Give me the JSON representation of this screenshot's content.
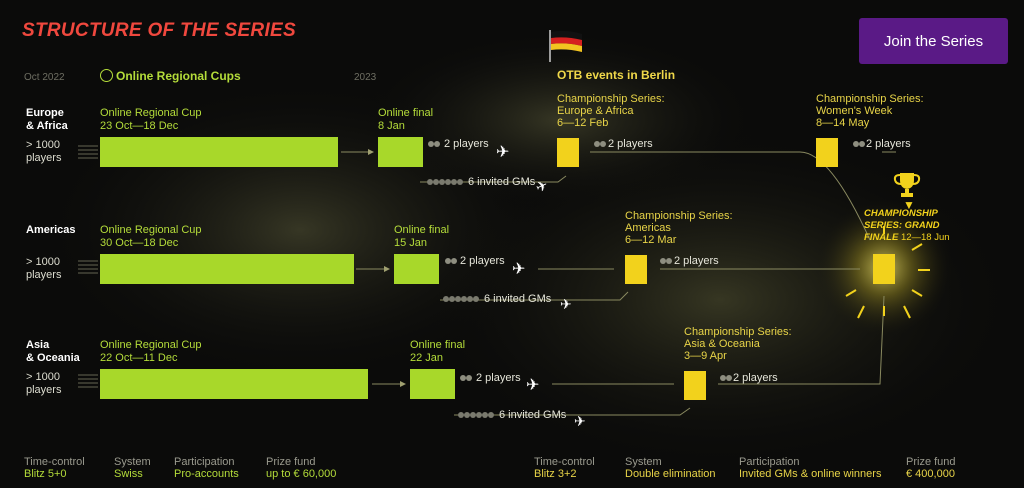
{
  "title": "STRUCTURE OF THE SERIES",
  "join_button": "Join the Series",
  "timeline": {
    "start": "Oct 2022",
    "mid": "2023",
    "online_section": "Online Regional Cups",
    "otb_section": "OTB events in Berlin"
  },
  "rows": [
    {
      "region_line1": "Europe",
      "region_line2": "& Africa",
      "players_line1": "> 1000",
      "players_line2": "players",
      "cup_label": "Online Regional Cup",
      "cup_dates": "23 Oct—18 Dec",
      "final_label": "Online final",
      "final_date": "8 Jan",
      "advance": "2 players",
      "invited": "6 invited GMs",
      "cs_label": "Championship Series:",
      "cs_region": "Europe & Africa",
      "cs_dates": "6—12 Feb",
      "cs_advance": "2 players"
    },
    {
      "region_line1": "Americas",
      "region_line2": "",
      "players_line1": "> 1000",
      "players_line2": "players",
      "cup_label": "Online Regional Cup",
      "cup_dates": "30 Oct—18 Dec",
      "final_label": "Online final",
      "final_date": "15 Jan",
      "advance": "2 players",
      "invited": "6 invited GMs",
      "cs_label": "Championship Series:",
      "cs_region": "Americas",
      "cs_dates": "6—12 Mar",
      "cs_advance": "2 players"
    },
    {
      "region_line1": "Asia",
      "region_line2": "& Oceania",
      "players_line1": "> 1000",
      "players_line2": "players",
      "cup_label": "Online Regional Cup",
      "cup_dates": "22 Oct—11 Dec",
      "final_label": "Online final",
      "final_date": "22 Jan",
      "advance": "2 players",
      "invited": "6 invited GMs",
      "cs_label": "Championship Series:",
      "cs_region": "Asia & Oceania",
      "cs_dates": "3—9 Apr",
      "cs_advance": "2 players"
    }
  ],
  "womens": {
    "label": "Championship Series:",
    "name": "Women's Week",
    "dates": "8—14 May",
    "advance": "2 players"
  },
  "grand_finale": {
    "line1": "CHAMPIONSHIP",
    "line2": "SERIES: GRAND",
    "line3": "FINALE",
    "dates": "12—18 Jun"
  },
  "footer_online": [
    {
      "label": "Time-control",
      "value": "Blitz 5+0"
    },
    {
      "label": "System",
      "value": "Swiss"
    },
    {
      "label": "Participation",
      "value": "Pro-accounts"
    },
    {
      "label": "Prize fund",
      "value": "up to € 60,000"
    }
  ],
  "footer_otb": [
    {
      "label": "Time-control",
      "value": "Blitz 3+2"
    },
    {
      "label": "System",
      "value": "Double elimination"
    },
    {
      "label": "Participation",
      "value": "Invited GMs & online winners"
    },
    {
      "label": "Prize fund",
      "value": "€ 400,000"
    }
  ],
  "colors": {
    "online_bar": "#a8d82a",
    "otb_box": "#f2d21c",
    "title": "#f0483e",
    "button": "#5a1a86"
  }
}
